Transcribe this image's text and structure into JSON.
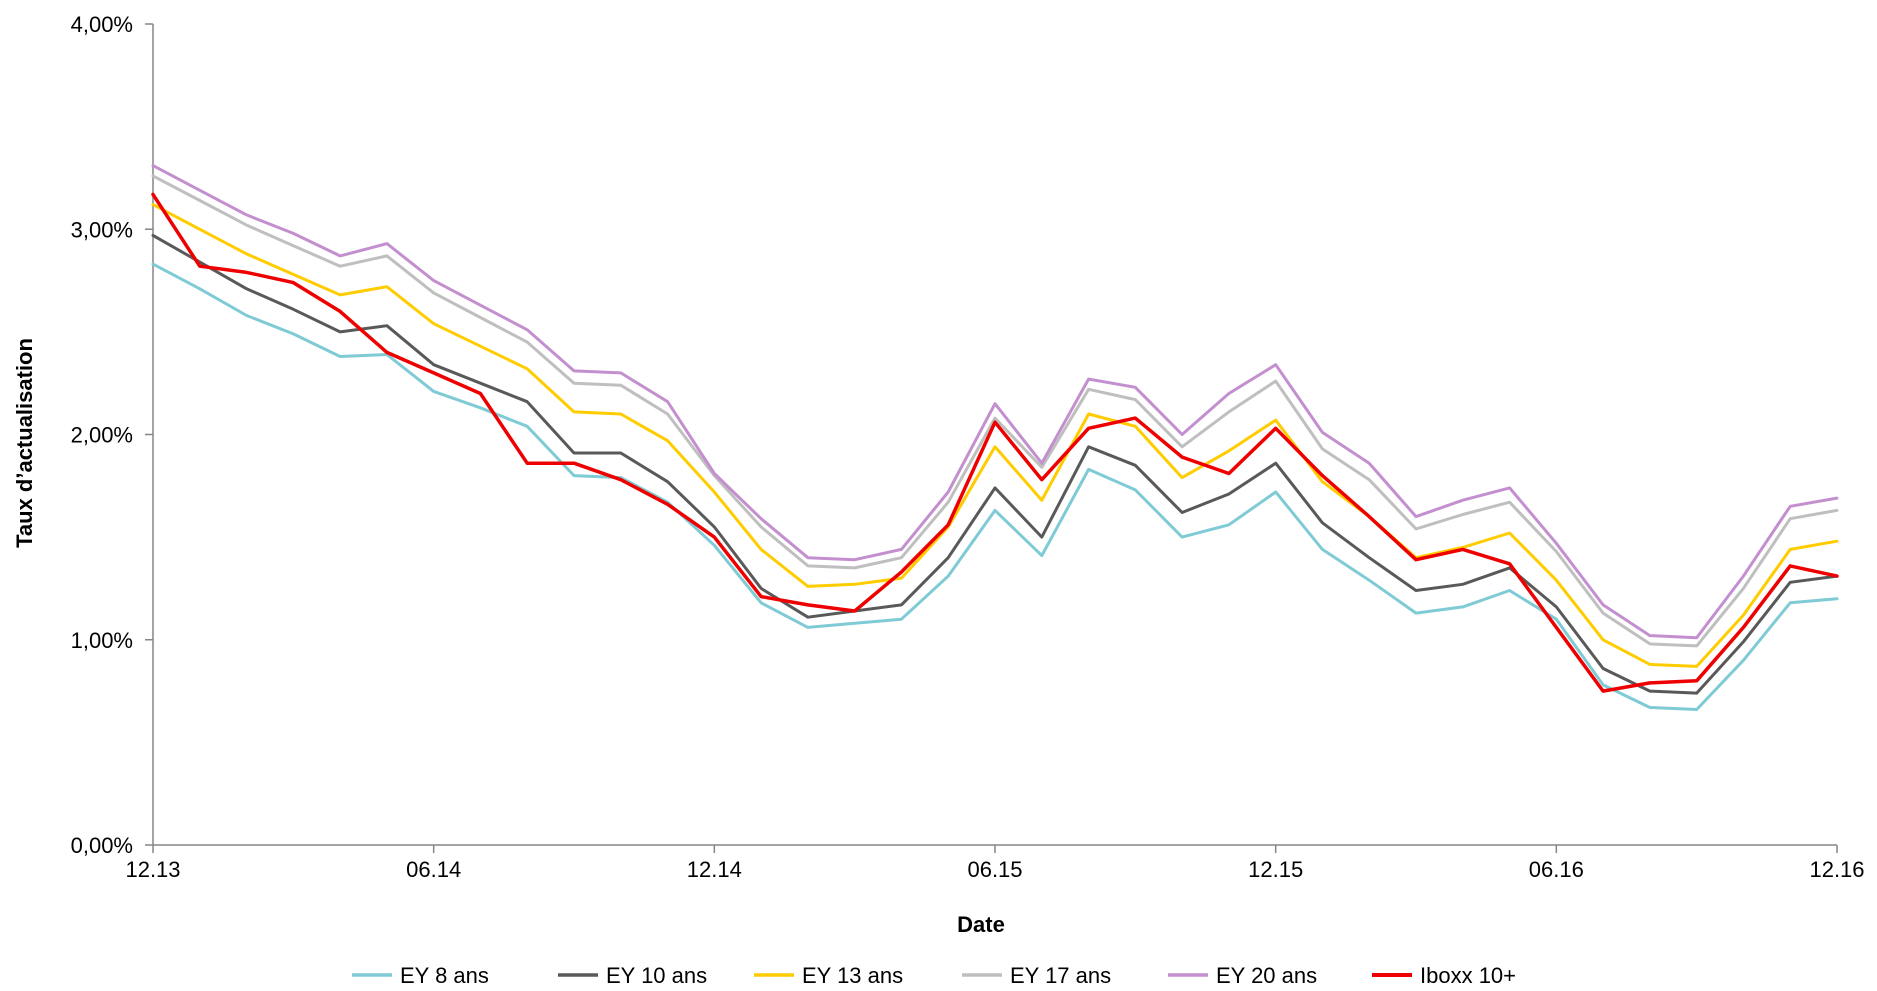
{
  "chart_data": {
    "type": "line",
    "title": "",
    "xlabel": "Date",
    "ylabel": "Taux d’actualisation",
    "ylim": [
      0,
      0.04
    ],
    "y_ticks": [
      0,
      0.01,
      0.02,
      0.03,
      0.04
    ],
    "y_tick_labels": [
      "0,00%",
      "1,00%",
      "2,00%",
      "3,00%",
      "4,00%"
    ],
    "x_count": 37,
    "x_tick_indices": [
      0,
      6,
      12,
      18,
      24,
      30,
      36
    ],
    "x_tick_labels": [
      "12.13",
      "06.14",
      "12.14",
      "06.15",
      "12.15",
      "06.16",
      "12.16"
    ],
    "grid": false,
    "legend_position": "bottom",
    "series": [
      {
        "name": "EY 8 ans",
        "color": "#7ECBD6",
        "values": [
          0.0283,
          0.0271,
          0.0258,
          0.0249,
          0.0238,
          0.0239,
          0.0221,
          0.0213,
          0.0204,
          0.018,
          0.0179,
          0.0167,
          0.0146,
          0.0118,
          0.0106,
          0.0108,
          0.011,
          0.0131,
          0.0163,
          0.0141,
          0.0183,
          0.0173,
          0.015,
          0.0156,
          0.0172,
          0.0144,
          0.0129,
          0.0113,
          0.0116,
          0.0124,
          0.011,
          0.0078,
          0.0067,
          0.0066,
          0.009,
          0.0118,
          0.012
        ]
      },
      {
        "name": "EY 10 ans",
        "color": "#595959",
        "values": [
          0.0297,
          0.0284,
          0.0271,
          0.0261,
          0.025,
          0.0253,
          0.0234,
          0.0225,
          0.0216,
          0.0191,
          0.0191,
          0.0177,
          0.0155,
          0.0125,
          0.0111,
          0.0114,
          0.0117,
          0.014,
          0.0174,
          0.015,
          0.0194,
          0.0185,
          0.0162,
          0.0171,
          0.0186,
          0.0157,
          0.014,
          0.0124,
          0.0127,
          0.0135,
          0.0116,
          0.0086,
          0.0075,
          0.0074,
          0.0099,
          0.0128,
          0.0131
        ]
      },
      {
        "name": "EY 13 ans",
        "color": "#FFCC00",
        "values": [
          0.0312,
          0.03,
          0.0288,
          0.0278,
          0.0268,
          0.0272,
          0.0254,
          0.0243,
          0.0232,
          0.0211,
          0.021,
          0.0197,
          0.0172,
          0.0144,
          0.0126,
          0.0127,
          0.013,
          0.0155,
          0.0194,
          0.0168,
          0.021,
          0.0204,
          0.0179,
          0.0192,
          0.0207,
          0.0177,
          0.016,
          0.014,
          0.0145,
          0.0152,
          0.0129,
          0.01,
          0.0088,
          0.0087,
          0.0112,
          0.0144,
          0.0148
        ]
      },
      {
        "name": "EY 17 ans",
        "color": "#BFBFBF",
        "values": [
          0.0326,
          0.0314,
          0.0302,
          0.0292,
          0.0282,
          0.0287,
          0.0269,
          0.0257,
          0.0245,
          0.0225,
          0.0224,
          0.021,
          0.018,
          0.0155,
          0.0136,
          0.0135,
          0.014,
          0.0167,
          0.0208,
          0.0184,
          0.0222,
          0.0217,
          0.0194,
          0.0211,
          0.0226,
          0.0193,
          0.0178,
          0.0154,
          0.0161,
          0.0167,
          0.0143,
          0.0113,
          0.0098,
          0.0097,
          0.0125,
          0.0159,
          0.0163
        ]
      },
      {
        "name": "EY 20 ans",
        "color": "#C38FCE",
        "values": [
          0.0331,
          0.0319,
          0.0307,
          0.0298,
          0.0287,
          0.0293,
          0.0275,
          0.0263,
          0.0251,
          0.0231,
          0.023,
          0.0216,
          0.0181,
          0.0159,
          0.014,
          0.0139,
          0.0144,
          0.0172,
          0.0215,
          0.0186,
          0.0227,
          0.0223,
          0.02,
          0.022,
          0.0234,
          0.0201,
          0.0186,
          0.016,
          0.0168,
          0.0174,
          0.0147,
          0.0117,
          0.0102,
          0.0101,
          0.0131,
          0.0165,
          0.0169
        ]
      },
      {
        "name": "Iboxx 10+",
        "color": "#EE0000",
        "values": [
          0.0317,
          0.0282,
          0.0279,
          0.0274,
          0.026,
          0.024,
          0.023,
          0.022,
          0.0186,
          0.0186,
          0.0178,
          0.0166,
          0.015,
          0.0121,
          0.0117,
          0.0114,
          0.0133,
          0.0156,
          0.0206,
          0.0178,
          0.0203,
          0.0208,
          0.0189,
          0.0181,
          0.0203,
          0.018,
          0.016,
          0.0139,
          0.0144,
          0.0137,
          0.0106,
          0.0075,
          0.0079,
          0.008,
          0.0106,
          0.0136,
          0.0131
        ]
      }
    ]
  }
}
